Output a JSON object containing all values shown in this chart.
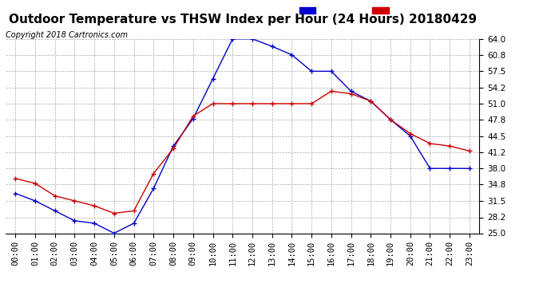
{
  "title": "Outdoor Temperature vs THSW Index per Hour (24 Hours) 20180429",
  "copyright": "Copyright 2018 Cartronics.com",
  "hours": [
    "00:00",
    "01:00",
    "02:00",
    "03:00",
    "04:00",
    "05:00",
    "06:00",
    "07:00",
    "08:00",
    "09:00",
    "10:00",
    "11:00",
    "12:00",
    "13:00",
    "14:00",
    "15:00",
    "16:00",
    "17:00",
    "18:00",
    "19:00",
    "20:00",
    "21:00",
    "22:00",
    "23:00"
  ],
  "thsw": [
    33.0,
    31.5,
    29.5,
    27.5,
    27.0,
    25.0,
    27.0,
    34.0,
    42.5,
    48.0,
    56.0,
    64.0,
    64.0,
    62.5,
    60.8,
    57.5,
    57.5,
    53.5,
    51.5,
    47.8,
    44.5,
    38.0,
    38.0,
    38.0
  ],
  "temperature": [
    36.0,
    35.0,
    32.5,
    31.5,
    30.5,
    29.0,
    29.5,
    37.0,
    42.0,
    48.5,
    51.0,
    51.0,
    51.0,
    51.0,
    51.0,
    51.0,
    53.5,
    53.0,
    51.5,
    47.8,
    45.0,
    43.0,
    42.5,
    41.5
  ],
  "ylabel_right_ticks": [
    25.0,
    28.2,
    31.5,
    34.8,
    38.0,
    41.2,
    44.5,
    47.8,
    51.0,
    54.2,
    57.5,
    60.8,
    64.0
  ],
  "thsw_color": "#0000cc",
  "temp_color": "#cc0000",
  "bg_color": "#ffffff",
  "grid_color": "#aaaaaa",
  "legend_thsw_bg": "#0000cc",
  "legend_temp_bg": "#cc0000",
  "ylim": [
    25.0,
    64.0
  ],
  "title_fontsize": 11,
  "copyright_fontsize": 7,
  "tick_fontsize": 7.5
}
